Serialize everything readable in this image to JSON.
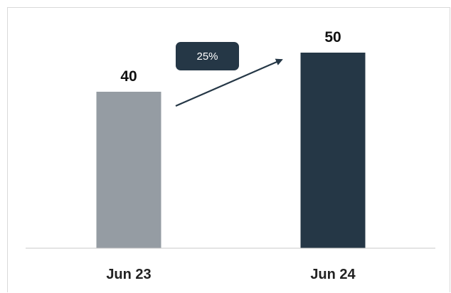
{
  "chart_data": {
    "type": "bar",
    "categories": [
      "Jun 23",
      "Jun 24"
    ],
    "values": [
      40,
      50
    ],
    "data_labels": [
      "40",
      "50"
    ],
    "colors": [
      "#959ca3",
      "#253746"
    ],
    "ylim": [
      0,
      50
    ],
    "grid": false,
    "annotation": {
      "label": "25%",
      "type": "growth-arrow",
      "badge_color": "#253746",
      "arrow_color": "#253746",
      "text_color": "#ffffff"
    },
    "axis_color": "#c8c8c8",
    "title": "",
    "xlabel": "",
    "ylabel": ""
  }
}
